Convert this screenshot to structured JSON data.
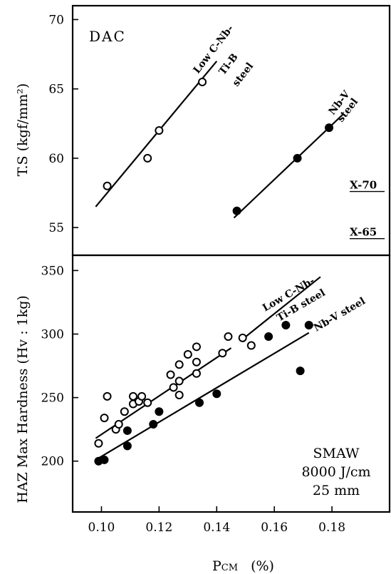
{
  "chart_data": [
    {
      "type": "scatter",
      "panel_label": "DAC",
      "ylabel": "T.S (kgf/mm²)",
      "ylim": [
        53,
        71
      ],
      "yticks": [
        55,
        60,
        65,
        70
      ],
      "xlim": [
        0.09,
        0.2
      ],
      "series": [
        {
          "name": "Low C-Nb-Ti-B steel",
          "marker": "open-circle",
          "points": [
            [
              0.102,
              58.0
            ],
            [
              0.116,
              60.0
            ],
            [
              0.12,
              62.0
            ],
            [
              0.135,
              65.5
            ]
          ],
          "fit": [
            [
              0.098,
              56.5
            ],
            [
              0.14,
              67.0
            ]
          ]
        },
        {
          "name": "Nb-V steel",
          "marker": "filled-circle",
          "points": [
            [
              0.147,
              56.2
            ],
            [
              0.168,
              60.0
            ],
            [
              0.179,
              62.2
            ]
          ],
          "fit": [
            [
              0.146,
              55.7
            ],
            [
              0.184,
              63.2
            ]
          ]
        }
      ],
      "reference_lines": [
        {
          "label": "X-70",
          "y": 57.6
        },
        {
          "label": "X-65",
          "y": 54.2
        }
      ]
    },
    {
      "type": "scatter",
      "xlabel": "P",
      "xlabel_sub": "CM",
      "xlabel_unit": "(%)",
      "ylabel": "HAZ Max Hardness (Hv : 1kg)",
      "xlim": [
        0.09,
        0.2
      ],
      "xticks": [
        "0.10",
        "0.12",
        "0.14",
        "0.16",
        "0.18"
      ],
      "ylim": [
        160,
        362
      ],
      "yticks": [
        200,
        250,
        300,
        350
      ],
      "series": [
        {
          "name": "Low C-Nb-Ti-B steel",
          "marker": "open-circle",
          "points": [
            [
              0.099,
              214
            ],
            [
              0.101,
              234
            ],
            [
              0.102,
              251
            ],
            [
              0.105,
              225
            ],
            [
              0.106,
              229
            ],
            [
              0.108,
              239
            ],
            [
              0.111,
              251
            ],
            [
              0.111,
              245
            ],
            [
              0.113,
              247
            ],
            [
              0.114,
              251
            ],
            [
              0.116,
              246
            ],
            [
              0.124,
              268
            ],
            [
              0.125,
              258
            ],
            [
              0.127,
              276
            ],
            [
              0.127,
              263
            ],
            [
              0.127,
              252
            ],
            [
              0.13,
              284
            ],
            [
              0.133,
              290
            ],
            [
              0.133,
              278
            ],
            [
              0.133,
              269
            ],
            [
              0.142,
              285
            ],
            [
              0.144,
              298
            ],
            [
              0.149,
              297
            ],
            [
              0.152,
              291
            ]
          ],
          "fit": [
            [
              0.098,
              218
            ],
            [
              0.145,
              289
            ]
          ],
          "fit_extension": [
            [
              0.149,
              296
            ],
            [
              0.176,
              345
            ]
          ]
        },
        {
          "name": "Nb-V steel",
          "marker": "filled-circle",
          "points": [
            [
              0.099,
              200
            ],
            [
              0.101,
              201
            ],
            [
              0.109,
              224
            ],
            [
              0.109,
              212
            ],
            [
              0.118,
              229
            ],
            [
              0.12,
              239
            ],
            [
              0.134,
              246
            ],
            [
              0.14,
              253
            ],
            [
              0.158,
              298
            ],
            [
              0.164,
              307
            ],
            [
              0.169,
              271
            ],
            [
              0.172,
              307
            ]
          ],
          "fit": [
            [
              0.098,
              201
            ],
            [
              0.172,
              301
            ]
          ]
        }
      ],
      "conditions": [
        "SMAW",
        "8000 J/cm",
        "25 mm"
      ]
    }
  ],
  "labels": {
    "top_low_c_line1": "Low C-Nb-",
    "top_low_c_line2": "Ti-B",
    "top_low_c_line3": "steel",
    "top_nbv_line1": "Nb-V",
    "top_nbv_line2": "steel",
    "bottom_low_c_line1": "Low C-Nb-",
    "bottom_low_c_line2": "Ti-B steel",
    "bottom_nbv": "Nb-V steel"
  }
}
